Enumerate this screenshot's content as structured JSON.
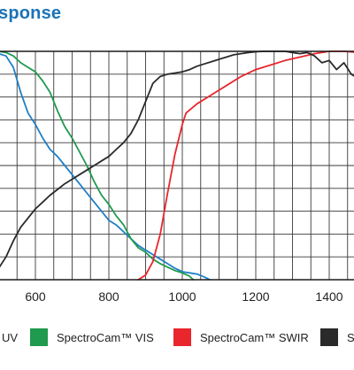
{
  "chart_data": {
    "type": "line",
    "title": "sponse",
    "xlabel": "",
    "ylabel": "",
    "xlim": [
      500,
      1500
    ],
    "ylim": [
      0,
      100
    ],
    "x_ticks": [
      600,
      800,
      1000,
      1200,
      1400
    ],
    "grid": true,
    "legend_placement": "bottom",
    "series": [
      {
        "name": "UV",
        "color": "#1f7fc6",
        "x": [
          480,
          500,
          520,
          540,
          560,
          580,
          600,
          620,
          640,
          660,
          680,
          700,
          720,
          740,
          760,
          780,
          800,
          820,
          840,
          860,
          880,
          900,
          920,
          940,
          960,
          980,
          1000,
          1020,
          1040,
          1060,
          1075
        ],
        "y": [
          100,
          99,
          98,
          93,
          82,
          73,
          68,
          62,
          57,
          54,
          50,
          46,
          42,
          38,
          34,
          30,
          26,
          24,
          21,
          18,
          15,
          13,
          11,
          9,
          7,
          5,
          3.5,
          3,
          2.5,
          1.2,
          0
        ]
      },
      {
        "name": "SpectroCam™ VIS",
        "color": "#1f9a4e",
        "x": [
          480,
          500,
          520,
          540,
          560,
          580,
          600,
          620,
          640,
          660,
          680,
          700,
          720,
          740,
          760,
          780,
          800,
          820,
          840,
          860,
          880,
          900,
          920,
          940,
          960,
          980,
          1000,
          1020,
          1030
        ],
        "y": [
          100,
          100,
          99.5,
          98,
          95,
          93,
          91,
          87,
          82,
          74,
          67,
          62,
          56,
          50,
          43,
          37,
          33,
          28,
          24,
          18,
          14,
          12,
          9,
          7,
          5.5,
          4,
          3,
          1.5,
          0
        ]
      },
      {
        "name": "SpectroCam™ SWIR",
        "color": "#e8262c",
        "x": [
          880,
          900,
          920,
          940,
          960,
          980,
          1000,
          1010,
          1040,
          1080,
          1120,
          1160,
          1200,
          1240,
          1280,
          1320,
          1360,
          1400,
          1440,
          1480,
          1500
        ],
        "y": [
          0,
          2,
          8,
          20,
          38,
          55,
          68,
          73,
          77,
          81,
          85,
          89,
          92,
          94,
          96,
          97.5,
          99,
          100,
          100,
          99.5,
          99
        ]
      },
      {
        "name": "S",
        "color": "#2a2a2a",
        "x": [
          480,
          500,
          520,
          540,
          560,
          580,
          600,
          620,
          640,
          660,
          680,
          700,
          720,
          740,
          760,
          780,
          800,
          820,
          840,
          860,
          880,
          900,
          920,
          940,
          960,
          980,
          1000,
          1020,
          1040,
          1060,
          1080,
          1100,
          1120,
          1140,
          1160,
          1180,
          1200,
          1220,
          1240,
          1260,
          1280,
          1300,
          1320,
          1340,
          1360,
          1380,
          1400,
          1420,
          1440,
          1460,
          1480,
          1500
        ],
        "y": [
          0,
          5,
          10,
          17,
          23,
          27,
          31,
          34,
          37,
          39.5,
          42,
          44,
          46,
          48,
          50,
          52,
          54,
          57,
          60,
          64,
          70,
          78,
          86,
          89,
          90,
          90.5,
          91,
          92,
          93.5,
          94.5,
          95.5,
          96.5,
          97.5,
          98.5,
          99,
          99.5,
          99.8,
          100,
          100,
          100,
          100,
          99.5,
          99,
          99.5,
          98,
          95,
          96,
          92,
          95,
          90,
          88,
          85
        ]
      }
    ]
  }
}
